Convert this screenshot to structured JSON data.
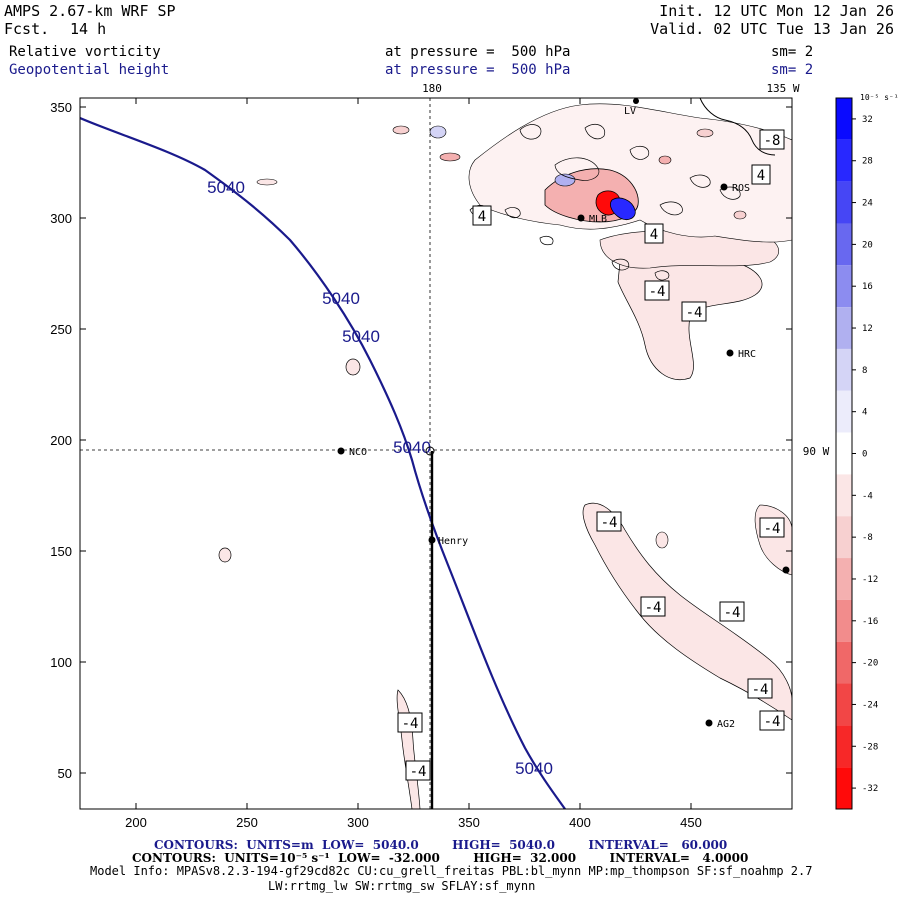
{
  "header": {
    "model": "AMPS 2.67-km WRF SP",
    "fcst_label": "Fcst.",
    "fcst_value": "14 h",
    "init": "Init. 12 UTC Mon 12 Jan 26",
    "valid": "Valid. 02 UTC Tue 13 Jan 26"
  },
  "fields": [
    {
      "name": "Relative vorticity",
      "level": "at pressure =  500 hPa",
      "smooth": "sm= 2"
    },
    {
      "name": "Geopotential height",
      "level": "at pressure =  500 hPa",
      "smooth": "sm= 2"
    }
  ],
  "map": {
    "x_ticks": [
      "200",
      "250",
      "300",
      "350",
      "400",
      "450"
    ],
    "y_ticks": [
      "350",
      "300",
      "250",
      "200",
      "150",
      "100",
      "50"
    ],
    "meridian_labels": {
      "top_180": "180",
      "top_135": "135 W",
      "right_90": "90 W"
    },
    "stations": [
      {
        "id": "NCO",
        "label": "NCO"
      },
      {
        "id": "Henry",
        "label": "Henry"
      },
      {
        "id": "HRC",
        "label": "HRC"
      },
      {
        "id": "AG2",
        "label": "AG2"
      },
      {
        "id": "MLB",
        "label": "MLB"
      },
      {
        "id": "ROS",
        "label": "ROS"
      },
      {
        "id": "LV",
        "label": "LV"
      }
    ],
    "height_contour_labels": [
      "5040",
      "5040",
      "5040",
      "5040",
      "5040"
    ],
    "vorticity_box_labels": [
      "4",
      "4",
      "4",
      "-4",
      "-4",
      "-8",
      "-4",
      "-4",
      "-4",
      "-4",
      "-4",
      "-4",
      "-4",
      "-4"
    ]
  },
  "colorbar": {
    "unit_label": "10⁻⁵ s⁻¹",
    "labels": [
      "32",
      "28",
      "24",
      "20",
      "16",
      "12",
      "8",
      "4",
      "0",
      "-4",
      "-8",
      "-12",
      "-16",
      "-20",
      "-24",
      "-28",
      "-32"
    ],
    "colors": [
      "#0a0aff",
      "#2828ff",
      "#4646f5",
      "#6868f0",
      "#8c8cf0",
      "#b0b0f0",
      "#d4d4f6",
      "#ececfb",
      "#ffffff",
      "#fbe6e6",
      "#f7d0d0",
      "#f4b0b0",
      "#f28c8c",
      "#f06868",
      "#f24646",
      "#f72828",
      "#ff0a0a"
    ]
  },
  "footer": {
    "height_contours": "CONTOURS:  UNITS=m  LOW=  5040.0        HIGH=  5040.0        INTERVAL=   60.000",
    "vort_contours": "CONTOURS:  UNITS=10⁻⁵ s⁻¹  LOW=  -32.000        HIGH=  32.000        INTERVAL=   4.0000",
    "model_info": "Model Info: MPASv8.2.3-194-gf29cd82c CU:cu_grell_freitas PBL:bl_mynn MP:mp_thompson SF:sf_noahmp 2.7",
    "model_info_2": "LW:rrtmg_lw SW:rrtmg_sw SFLAY:sf_mynn"
  }
}
